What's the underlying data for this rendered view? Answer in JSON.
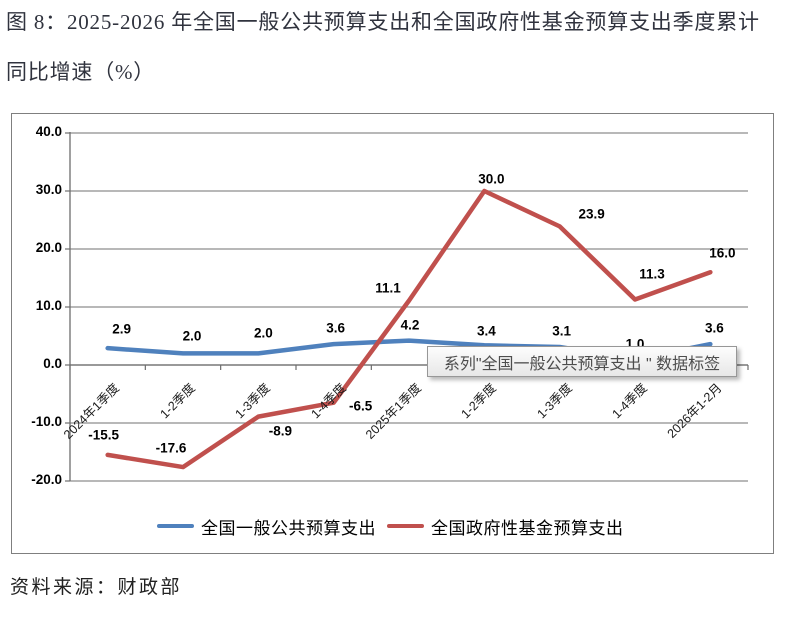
{
  "figure": {
    "title_line1": "图 8：2025-2026 年全国一般公共预算支出和全国政府性基金预算支出季度累计",
    "title_line2": "同比增速（%）",
    "source": "资料来源：财政部"
  },
  "tooltip": {
    "text": "系列\"全国一般公共预算支出 \" 数据标签"
  },
  "chart_data": {
    "type": "line",
    "title": "",
    "xlabel": "",
    "ylabel": "",
    "categories": [
      "2024年1季度",
      "1-2季度",
      "1-3季度",
      "1-4季度",
      "2025年1季度",
      "1-2季度",
      "1-3季度",
      "1-4季度",
      "2026年1-2月"
    ],
    "series": [
      {
        "name": "全国一般公共预算支出",
        "color": "#4F81BD",
        "values": [
          2.9,
          2.0,
          2.0,
          3.6,
          4.2,
          3.4,
          3.1,
          1.0,
          3.6
        ],
        "label_offsets": [
          [
            14,
            -19
          ],
          [
            9,
            -17
          ],
          [
            5,
            -20
          ],
          [
            2,
            -16
          ],
          [
            1,
            -16
          ],
          [
            2,
            -14
          ],
          [
            2,
            -16
          ],
          [
            0,
            -15
          ],
          [
            4,
            -16
          ]
        ]
      },
      {
        "name": "全国政府性基金预算支出",
        "color": "#C0504D",
        "values": [
          -15.5,
          -17.6,
          -8.9,
          -6.5,
          11.1,
          30.0,
          23.9,
          11.3,
          16.0
        ],
        "label_offsets": [
          [
            -4,
            -20
          ],
          [
            -12,
            -19
          ],
          [
            22,
            14
          ],
          [
            27,
            3
          ],
          [
            -21,
            -13
          ],
          [
            7,
            -12
          ],
          [
            32,
            -12
          ],
          [
            17,
            -25
          ],
          [
            12,
            -19
          ]
        ]
      }
    ],
    "ylim": [
      -20,
      40
    ],
    "ytick_step": 10,
    "ytick_decimals": 1,
    "grid": true,
    "legend_position": "bottom",
    "grid_color": "#8e8e8e",
    "axis_color": "#6d6d6d"
  }
}
